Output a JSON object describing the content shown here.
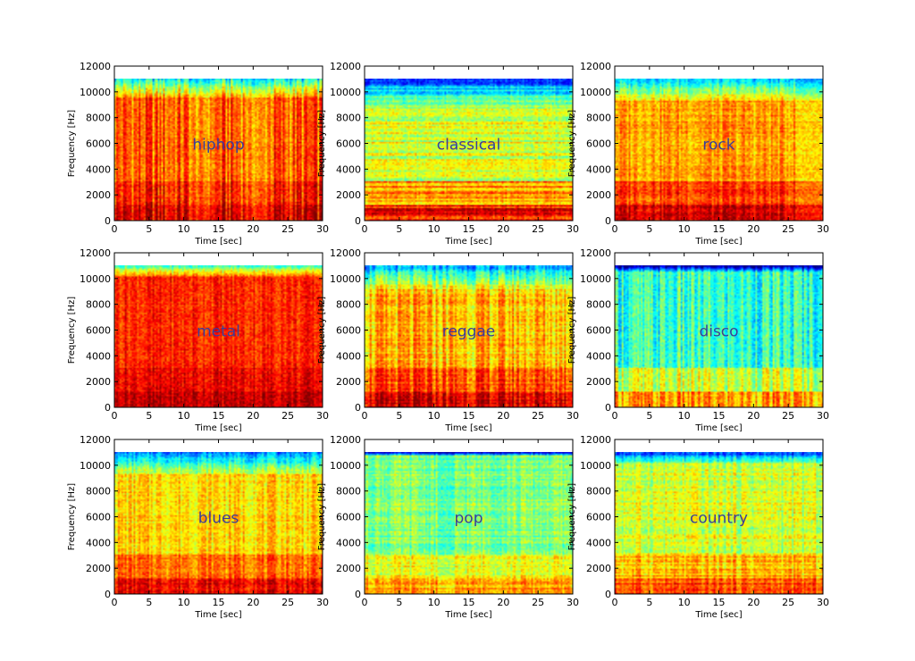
{
  "chart_data": [
    {
      "type": "heatmap",
      "title": "hiphop",
      "xlabel": "Time [sec]",
      "ylabel": "Frequency [Hz]",
      "xlim": [
        0,
        30
      ],
      "ylim": [
        0,
        12000
      ],
      "max_freq_hz": 11025,
      "xticks": [
        "0",
        "5",
        "10",
        "15",
        "20",
        "25",
        "30"
      ],
      "yticks": [
        "0",
        "2000",
        "4000",
        "6000",
        "8000",
        "10000",
        "12000"
      ],
      "base_intensity": 0.78,
      "low_band_boost": 0.12,
      "top_fade_start_hz": 9600,
      "vertical_streaks": 0.55,
      "horizontal_bands": 0.05,
      "dip_regions": [
        [
          11,
          14
        ],
        [
          19,
          22
        ]
      ]
    },
    {
      "type": "heatmap",
      "title": "classical",
      "xlabel": "Time [sec]",
      "ylabel": "Frequency [Hz]",
      "xlim": [
        0,
        30
      ],
      "ylim": [
        0,
        12000
      ],
      "max_freq_hz": 11025,
      "xticks": [
        "0",
        "5",
        "10",
        "15",
        "20",
        "25",
        "30"
      ],
      "yticks": [
        "0",
        "2000",
        "4000",
        "6000",
        "8000",
        "10000",
        "12000"
      ],
      "base_intensity": 0.58,
      "low_band_boost": 0.28,
      "top_fade_start_hz": 9000,
      "vertical_streaks": 0.15,
      "horizontal_bands": 0.35,
      "dip_regions": []
    },
    {
      "type": "heatmap",
      "title": "rock",
      "xlabel": "Time [sec]",
      "ylabel": "Frequency [Hz]",
      "xlim": [
        0,
        30
      ],
      "ylim": [
        0,
        12000
      ],
      "max_freq_hz": 11025,
      "xticks": [
        "0",
        "5",
        "10",
        "15",
        "20",
        "25",
        "30"
      ],
      "yticks": [
        "0",
        "2000",
        "4000",
        "6000",
        "8000",
        "10000",
        "12000"
      ],
      "base_intensity": 0.72,
      "low_band_boost": 0.2,
      "top_fade_start_hz": 9400,
      "vertical_streaks": 0.3,
      "horizontal_bands": 0.12,
      "dip_regions": [
        [
          26,
          30
        ]
      ]
    },
    {
      "type": "heatmap",
      "title": "metal",
      "xlabel": "Time [sec]",
      "ylabel": "Frequency [Hz]",
      "xlim": [
        0,
        30
      ],
      "ylim": [
        0,
        12000
      ],
      "max_freq_hz": 11025,
      "xticks": [
        "0",
        "5",
        "10",
        "15",
        "20",
        "25",
        "30"
      ],
      "yticks": [
        "0",
        "2000",
        "4000",
        "6000",
        "8000",
        "10000",
        "12000"
      ],
      "base_intensity": 0.84,
      "low_band_boost": 0.1,
      "top_fade_start_hz": 10200,
      "vertical_streaks": 0.25,
      "horizontal_bands": 0.05,
      "dip_regions": []
    },
    {
      "type": "heatmap",
      "title": "reggae",
      "xlabel": "Time [sec]",
      "ylabel": "Frequency [Hz]",
      "xlim": [
        0,
        30
      ],
      "ylim": [
        0,
        12000
      ],
      "max_freq_hz": 11025,
      "xticks": [
        "0",
        "5",
        "10",
        "15",
        "20",
        "25",
        "30"
      ],
      "yticks": [
        "0",
        "2000",
        "4000",
        "6000",
        "8000",
        "10000",
        "12000"
      ],
      "base_intensity": 0.68,
      "low_band_boost": 0.22,
      "top_fade_start_hz": 9200,
      "vertical_streaks": 0.45,
      "horizontal_bands": 0.15,
      "dip_regions": []
    },
    {
      "type": "heatmap",
      "title": "disco",
      "xlabel": "Time [sec]",
      "ylabel": "Frequency [Hz]",
      "xlim": [
        0,
        30
      ],
      "ylim": [
        0,
        12000
      ],
      "max_freq_hz": 11025,
      "xticks": [
        "0",
        "5",
        "10",
        "15",
        "20",
        "25",
        "30"
      ],
      "yticks": [
        "0",
        "2000",
        "4000",
        "6000",
        "8000",
        "10000",
        "12000"
      ],
      "base_intensity": 0.42,
      "low_band_boost": 0.3,
      "top_fade_start_hz": 10600,
      "vertical_streaks": 0.5,
      "horizontal_bands": 0.05,
      "dip_regions": []
    },
    {
      "type": "heatmap",
      "title": "blues",
      "xlabel": "Time [sec]",
      "ylabel": "Frequency [Hz]",
      "xlim": [
        0,
        30
      ],
      "ylim": [
        0,
        12000
      ],
      "max_freq_hz": 11025,
      "xticks": [
        "0",
        "5",
        "10",
        "15",
        "20",
        "25",
        "30"
      ],
      "yticks": [
        "0",
        "2000",
        "4000",
        "6000",
        "8000",
        "10000",
        "12000"
      ],
      "base_intensity": 0.66,
      "low_band_boost": 0.22,
      "top_fade_start_hz": 9300,
      "vertical_streaks": 0.3,
      "horizontal_bands": 0.1,
      "dip_regions": []
    },
    {
      "type": "heatmap",
      "title": "pop",
      "xlabel": "Time [sec]",
      "ylabel": "Frequency [Hz]",
      "xlim": [
        0,
        30
      ],
      "ylim": [
        0,
        12000
      ],
      "max_freq_hz": 11025,
      "xticks": [
        "0",
        "5",
        "10",
        "15",
        "20",
        "25",
        "30"
      ],
      "yticks": [
        "0",
        "2000",
        "4000",
        "6000",
        "8000",
        "10000",
        "12000"
      ],
      "base_intensity": 0.5,
      "low_band_boost": 0.22,
      "top_fade_start_hz": 10800,
      "vertical_streaks": 0.25,
      "horizontal_bands": 0.2,
      "dip_regions": [
        [
          10.5,
          13
        ]
      ]
    },
    {
      "type": "heatmap",
      "title": "country",
      "xlabel": "Time [sec]",
      "ylabel": "Frequency [Hz]",
      "xlim": [
        0,
        30
      ],
      "ylim": [
        0,
        12000
      ],
      "max_freq_hz": 11025,
      "xticks": [
        "0",
        "5",
        "10",
        "15",
        "20",
        "25",
        "30"
      ],
      "yticks": [
        "0",
        "2000",
        "4000",
        "6000",
        "8000",
        "10000",
        "12000"
      ],
      "base_intensity": 0.58,
      "low_band_boost": 0.22,
      "top_fade_start_hz": 10200,
      "vertical_streaks": 0.3,
      "horizontal_bands": 0.2,
      "dip_regions": []
    }
  ],
  "colormap": "jet"
}
